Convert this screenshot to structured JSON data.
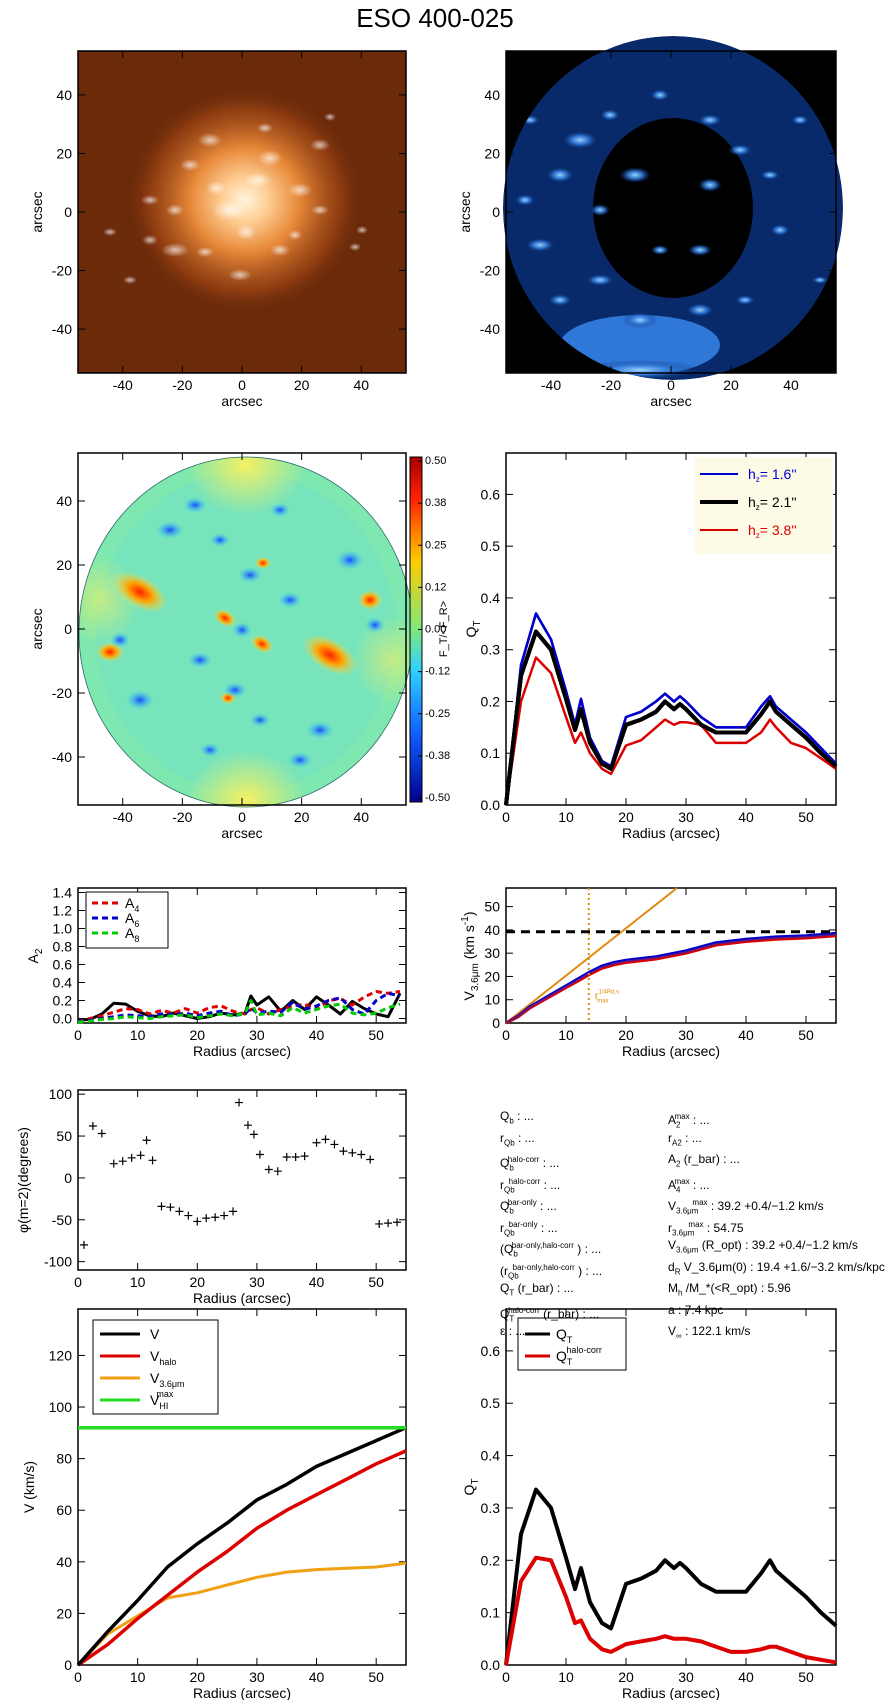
{
  "figure": {
    "title": "ESO 400-025"
  },
  "panels": {
    "image_left": {
      "xlabel": "arcsec",
      "ylabel": "arcsec",
      "xlim": [
        -55,
        55
      ],
      "ylim": [
        -55,
        55
      ],
      "xticks": [
        -40,
        -20,
        0,
        20,
        40
      ],
      "yticks": [
        -40,
        -20,
        0,
        20,
        40
      ],
      "colormap": "orange-heat",
      "background": "#6b2a0a"
    },
    "image_right": {
      "xlabel": "arcsec",
      "ylabel": "arcsec",
      "xlim": [
        -55,
        55
      ],
      "ylim": [
        -55,
        55
      ],
      "xticks": [
        -40,
        -20,
        0,
        20,
        40
      ],
      "yticks": [
        -40,
        -20,
        0,
        20,
        40
      ],
      "colormap": "blue",
      "background": "#000000"
    },
    "force_map": {
      "xlabel": "arcsec",
      "ylabel": "arcsec",
      "xlim": [
        -55,
        55
      ],
      "ylim": [
        -55,
        55
      ],
      "xticks": [
        -40,
        -20,
        0,
        20,
        40
      ],
      "yticks": [
        -40,
        -20,
        0,
        20,
        40
      ],
      "colorbar_label": "F_T/<F_R>",
      "colorbar_ticks": [
        "0.50",
        "0.38",
        "0.25",
        "0.12",
        "0.00",
        "-0.12",
        "-0.25",
        "-0.38",
        "-0.50"
      ]
    },
    "qt_hz": {
      "xlabel": "Radius (arcsec)",
      "ylabel": "Q_T",
      "xlim": [
        0,
        55
      ],
      "ylim": [
        0,
        0.68
      ],
      "xticks": [
        0,
        10,
        20,
        30,
        40,
        50
      ],
      "yticks": [
        "0.0",
        "0.1",
        "0.2",
        "0.3",
        "0.4",
        "0.5",
        "0.6"
      ],
      "legend": [
        {
          "label": "h_z=",
          "value": "1.6''",
          "color": "#0000cc"
        },
        {
          "label": "h_z=",
          "value": "2.1''",
          "color": "#000000"
        },
        {
          "label": "h_z=",
          "value": "3.8''",
          "color": "#dd0000"
        }
      ]
    },
    "a2": {
      "xlabel": "Radius (arcsec)",
      "ylabel": "A_2",
      "xlim": [
        0,
        55
      ],
      "ylim": [
        -0.05,
        1.45
      ],
      "xticks": [
        0,
        10,
        20,
        30,
        40,
        50
      ],
      "yticks": [
        "0.0",
        "0.2",
        "0.4",
        "0.6",
        "0.8",
        "1.0",
        "1.2",
        "1.4"
      ],
      "legend": [
        {
          "label": "A",
          "sub": "4",
          "color": "#dd0000"
        },
        {
          "label": "A",
          "sub": "6",
          "color": "#0000cc"
        },
        {
          "label": "A",
          "sub": "8",
          "color": "#00cc00"
        }
      ]
    },
    "v36": {
      "xlabel": "Radius (arcsec)",
      "ylabel": "V_3.6um (km s^-1)",
      "xlim": [
        0,
        55
      ],
      "ylim": [
        0,
        58
      ],
      "xticks": [
        0,
        10,
        20,
        30,
        40,
        50
      ],
      "yticks": [
        "0",
        "10",
        "20",
        "30",
        "40",
        "50"
      ],
      "rmax_label": "r_max^(1/4Rd,s)"
    },
    "phase": {
      "xlabel": "Radius (arcsec)",
      "ylabel": "φ(m=2)(degrees)",
      "xlim": [
        0,
        55
      ],
      "ylim": [
        -110,
        105
      ],
      "xticks": [
        0,
        10,
        20,
        30,
        40,
        50
      ],
      "yticks": [
        "100",
        "50",
        "0",
        "-50",
        "-100"
      ]
    },
    "vrot": {
      "xlabel": "Radius (arcsec)",
      "ylabel": "V (km/s)",
      "xlim": [
        0,
        55
      ],
      "ylim": [
        0,
        138
      ],
      "xticks": [
        0,
        10,
        20,
        30,
        40,
        50
      ],
      "yticks": [
        "0",
        "20",
        "40",
        "60",
        "80",
        "100",
        "120"
      ],
      "legend": [
        {
          "label": "V",
          "sub": "",
          "sup": "",
          "color": "#000000"
        },
        {
          "label": "V",
          "sub": "halo",
          "sup": "",
          "color": "#dd0000"
        },
        {
          "label": "V",
          "sub": "3.6μm",
          "sup": "",
          "color": "#f0a010"
        },
        {
          "label": "V",
          "sub": "HI",
          "sup": "max",
          "color": "#22dd22"
        }
      ]
    },
    "qt_halo": {
      "xlabel": "Radius (arcsec)",
      "ylabel": "Q_T",
      "xlim": [
        0,
        55
      ],
      "ylim": [
        0,
        0.68
      ],
      "xticks": [
        0,
        10,
        20,
        30,
        40,
        50
      ],
      "yticks": [
        "0.0",
        "0.1",
        "0.2",
        "0.3",
        "0.4",
        "0.5",
        "0.6"
      ],
      "legend": [
        {
          "label": "Q",
          "sub": "T",
          "sup": "",
          "color": "#000000"
        },
        {
          "label": "Q",
          "sub": "T",
          "sup": "halo-corr",
          "color": "#dd0000"
        }
      ]
    }
  },
  "params": {
    "left": [
      {
        "name": "Q",
        "sub": "b",
        "sup": "",
        "value": ": ..."
      },
      {
        "name": "r",
        "sub": "Qb",
        "sup": "",
        "value": ": ..."
      },
      {
        "name": "Q",
        "sub": "b",
        "sup": "halo-corr",
        "value": ": ..."
      },
      {
        "name": "r",
        "sub": "Qb",
        "sup": "halo-corr",
        "value": ": ..."
      },
      {
        "name": "Q",
        "sub": "b",
        "sup": "bar-only",
        "value": ": ..."
      },
      {
        "name": "r",
        "sub": "Qb",
        "sup": "bar-only",
        "value": ": ..."
      },
      {
        "name": "(Q",
        "sub": "b",
        "sup": "bar-only,halo-corr",
        "value": ") : ..."
      },
      {
        "name": "(r",
        "sub": "Qb",
        "sup": "bar-only,halo-corr",
        "value": ") : ..."
      },
      {
        "name": "Q",
        "sub": "T",
        "sup": "",
        "value": "(r_bar) : ..."
      },
      {
        "name": "Q",
        "sub": "T",
        "sup": "halo-corr",
        "value": "(r_bar) : ..."
      },
      {
        "name": "ε",
        "sub": "",
        "sup": "",
        "value": ": ..."
      }
    ],
    "right": [
      {
        "name": "A",
        "sub": "2",
        "sup": "max",
        "value": ": ..."
      },
      {
        "name": "r",
        "sub": "A2",
        "sup": "",
        "value": ": ..."
      },
      {
        "name": "A",
        "sub": "2",
        "sup": "",
        "value": "(r_bar) : ..."
      },
      {
        "name": "A",
        "sub": "4",
        "sup": "max",
        "value": ": ..."
      },
      {
        "name": "V",
        "sub": "3.6μm",
        "sup": "max",
        "value": ":  39.2 +0.4/−1.2 km/s"
      },
      {
        "name": "r",
        "sub": "3.6μm",
        "sup": "max",
        "value": ":  54.75"
      },
      {
        "name": "V",
        "sub": "3.6μm",
        "sup": "",
        "value": "(R_opt) :  39.2 +0.4/−1.2 km/s"
      },
      {
        "name": "d",
        "sub": "R",
        "sup": "",
        "value": "V_3.6μm(0) :  19.4 +1.6/−3.2 km/s/kpc"
      },
      {
        "name": "M",
        "sub": "h",
        "sup": "",
        "value": "/M_*(<R_opt) :  5.96"
      },
      {
        "name": "a",
        "sub": "",
        "sup": "",
        "value": ":  7.4 kpc"
      },
      {
        "name": "V",
        "sub": "∞",
        "sup": "",
        "value": ":  122.1 km/s"
      }
    ]
  },
  "chart_data": [
    {
      "type": "heatmap",
      "panel": "image_left",
      "description_label": "arcsec",
      "xlim": [
        -55,
        55
      ],
      "ylim": [
        -55,
        55
      ]
    },
    {
      "type": "heatmap",
      "panel": "image_right",
      "xlim": [
        -55,
        55
      ],
      "ylim": [
        -55,
        55
      ]
    },
    {
      "type": "heatmap",
      "panel": "force_map",
      "xlim": [
        -55,
        55
      ],
      "ylim": [
        -55,
        55
      ],
      "zlim": [
        -0.5,
        0.5
      ]
    },
    {
      "type": "line",
      "panel": "qt_hz",
      "x": [
        0,
        2.5,
        5,
        7.5,
        10,
        11.5,
        12.5,
        14,
        16,
        17.5,
        20,
        22.5,
        25,
        26.5,
        28,
        29,
        30,
        32.5,
        35,
        37.5,
        40,
        42.5,
        44,
        45,
        47.5,
        50,
        52.5,
        55
      ],
      "series": [
        {
          "name": "h_z= 1.6''",
          "values": [
            0,
            0.27,
            0.37,
            0.32,
            0.22,
            0.155,
            0.205,
            0.13,
            0.085,
            0.075,
            0.17,
            0.18,
            0.2,
            0.215,
            0.2,
            0.21,
            0.2,
            0.17,
            0.15,
            0.15,
            0.15,
            0.19,
            0.21,
            0.19,
            0.165,
            0.14,
            0.11,
            0.08
          ]
        },
        {
          "name": "h_z= 2.1''",
          "values": [
            0,
            0.25,
            0.335,
            0.3,
            0.205,
            0.145,
            0.185,
            0.12,
            0.08,
            0.07,
            0.155,
            0.165,
            0.18,
            0.2,
            0.185,
            0.195,
            0.185,
            0.155,
            0.14,
            0.14,
            0.14,
            0.175,
            0.2,
            0.18,
            0.155,
            0.13,
            0.1,
            0.075
          ]
        },
        {
          "name": "h_z= 3.8''",
          "values": [
            0,
            0.2,
            0.285,
            0.255,
            0.17,
            0.12,
            0.14,
            0.1,
            0.07,
            0.06,
            0.115,
            0.125,
            0.15,
            0.165,
            0.155,
            0.16,
            0.16,
            0.155,
            0.12,
            0.12,
            0.12,
            0.14,
            0.165,
            0.15,
            0.12,
            0.11,
            0.09,
            0.07
          ]
        }
      ]
    },
    {
      "type": "line",
      "panel": "a2",
      "x": [
        0,
        2,
        4,
        6,
        8,
        10,
        12,
        14,
        16,
        18,
        20,
        22,
        24,
        26,
        28,
        29,
        30,
        32,
        34,
        36,
        38,
        40,
        42,
        44,
        46,
        48,
        50,
        52,
        54
      ],
      "series": [
        {
          "name": "A_2",
          "values": [
            -0.02,
            -0.01,
            0.05,
            0.17,
            0.16,
            0.08,
            0.03,
            0.02,
            0.06,
            0.03,
            0.0,
            0.02,
            0.06,
            0.04,
            0.06,
            0.25,
            0.15,
            0.24,
            0.08,
            0.2,
            0.1,
            0.24,
            0.15,
            0.05,
            0.19,
            0.11,
            0.05,
            0.02,
            0.28
          ]
        },
        {
          "name": "A_4",
          "values": [
            -0.03,
            0.0,
            0.03,
            0.07,
            0.11,
            0.1,
            0.05,
            0.09,
            0.06,
            0.11,
            0.06,
            0.12,
            0.14,
            0.08,
            0.05,
            0.1,
            0.12,
            0.05,
            0.1,
            0.14,
            0.16,
            0.1,
            0.2,
            0.22,
            0.15,
            0.24,
            0.3,
            0.28,
            0.3
          ]
        },
        {
          "name": "A_6",
          "values": [
            -0.03,
            -0.02,
            0.0,
            0.02,
            0.04,
            0.03,
            0.02,
            0.05,
            0.04,
            0.06,
            0.03,
            0.06,
            0.08,
            0.03,
            0.05,
            0.12,
            0.06,
            0.08,
            0.07,
            0.18,
            0.1,
            0.14,
            0.2,
            0.23,
            0.1,
            0.05,
            0.2,
            0.28,
            0.25
          ]
        },
        {
          "name": "A_8",
          "values": [
            -0.04,
            -0.03,
            -0.01,
            0.0,
            0.02,
            0.01,
            0.0,
            0.02,
            0.03,
            0.04,
            0.01,
            0.03,
            0.05,
            0.03,
            0.06,
            0.2,
            0.04,
            0.06,
            0.03,
            0.12,
            0.06,
            0.1,
            0.14,
            0.16,
            0.06,
            0.04,
            0.06,
            0.12,
            0.16
          ]
        }
      ]
    },
    {
      "type": "line",
      "panel": "v36",
      "x": [
        0,
        2,
        4,
        6,
        8,
        10,
        12,
        14,
        16,
        18,
        20,
        25,
        30,
        35,
        40,
        45,
        50,
        55
      ],
      "series": [
        {
          "name": "V_3.6um",
          "values": [
            0,
            3,
            7,
            10,
            13,
            16,
            19,
            22,
            24.5,
            26,
            27,
            28.5,
            31,
            34.5,
            36,
            37,
            37.5,
            38.5
          ]
        },
        {
          "name": "lower",
          "values": [
            0,
            2.6,
            6.5,
            9.4,
            12.3,
            15.2,
            18,
            21,
            23.5,
            25,
            26,
            27.5,
            30,
            33.5,
            35,
            36,
            36.5,
            37.5
          ]
        },
        {
          "name": "inner slope",
          "x": [
            0,
            28.5
          ],
          "values": [
            0,
            58
          ]
        }
      ],
      "hline": 39.2,
      "vline": 13.8
    },
    {
      "type": "scatter",
      "panel": "phase",
      "x": [
        1,
        2.5,
        4,
        6,
        7.5,
        9,
        10.5,
        11.5,
        12.5,
        14,
        15.5,
        17,
        18.5,
        20,
        21.5,
        23,
        24.5,
        26,
        27,
        28.5,
        29.5,
        30.5,
        32,
        33.5,
        35,
        36.5,
        38,
        40,
        41.5,
        43,
        44.5,
        46,
        47.5,
        49,
        50.5,
        52,
        53.5
      ],
      "y": [
        -80,
        62,
        53,
        17,
        20,
        24,
        27,
        45,
        21,
        -34,
        -35,
        -40,
        -45,
        -52,
        -48,
        -47,
        -45,
        -40,
        90,
        63,
        52,
        28,
        10,
        8,
        25,
        25,
        26,
        42,
        46,
        40,
        32,
        30,
        28,
        22,
        -55,
        -54,
        -53
      ]
    },
    {
      "type": "line",
      "panel": "vrot",
      "x": [
        0,
        5,
        10,
        15,
        20,
        25,
        30,
        35,
        40,
        45,
        50,
        55
      ],
      "series": [
        {
          "name": "V",
          "values": [
            0,
            13,
            25,
            38,
            47,
            55,
            64,
            70,
            77,
            82,
            87,
            92
          ]
        },
        {
          "name": "V_halo",
          "values": [
            0,
            8,
            18,
            27,
            36,
            44,
            53,
            60,
            66,
            72,
            78,
            83
          ]
        },
        {
          "name": "V_3.6um",
          "values": [
            0,
            12,
            19,
            26,
            28,
            31,
            34,
            36,
            37,
            37.5,
            38,
            39.5
          ]
        },
        {
          "name": "V_HI^max",
          "values": [
            92,
            92,
            92,
            92,
            92,
            92,
            92,
            92,
            92,
            92,
            92,
            92
          ]
        }
      ]
    },
    {
      "type": "line",
      "panel": "qt_halo",
      "x": [
        0,
        2.5,
        5,
        7.5,
        10,
        11.5,
        12.5,
        14,
        16,
        17.5,
        20,
        22.5,
        25,
        26.5,
        28,
        29,
        30,
        32.5,
        35,
        37.5,
        40,
        42.5,
        44,
        45,
        47.5,
        50,
        52.5,
        55
      ],
      "series": [
        {
          "name": "Q_T",
          "values": [
            0,
            0.25,
            0.335,
            0.3,
            0.205,
            0.145,
            0.185,
            0.12,
            0.08,
            0.07,
            0.155,
            0.165,
            0.18,
            0.2,
            0.185,
            0.195,
            0.185,
            0.155,
            0.14,
            0.14,
            0.14,
            0.175,
            0.2,
            0.18,
            0.155,
            0.13,
            0.1,
            0.075
          ]
        },
        {
          "name": "Q_T^halo-corr",
          "values": [
            0,
            0.16,
            0.205,
            0.2,
            0.13,
            0.08,
            0.085,
            0.05,
            0.03,
            0.025,
            0.04,
            0.045,
            0.05,
            0.055,
            0.05,
            0.05,
            0.05,
            0.045,
            0.035,
            0.025,
            0.025,
            0.03,
            0.035,
            0.035,
            0.025,
            0.015,
            0.01,
            0.005
          ]
        }
      ]
    }
  ]
}
